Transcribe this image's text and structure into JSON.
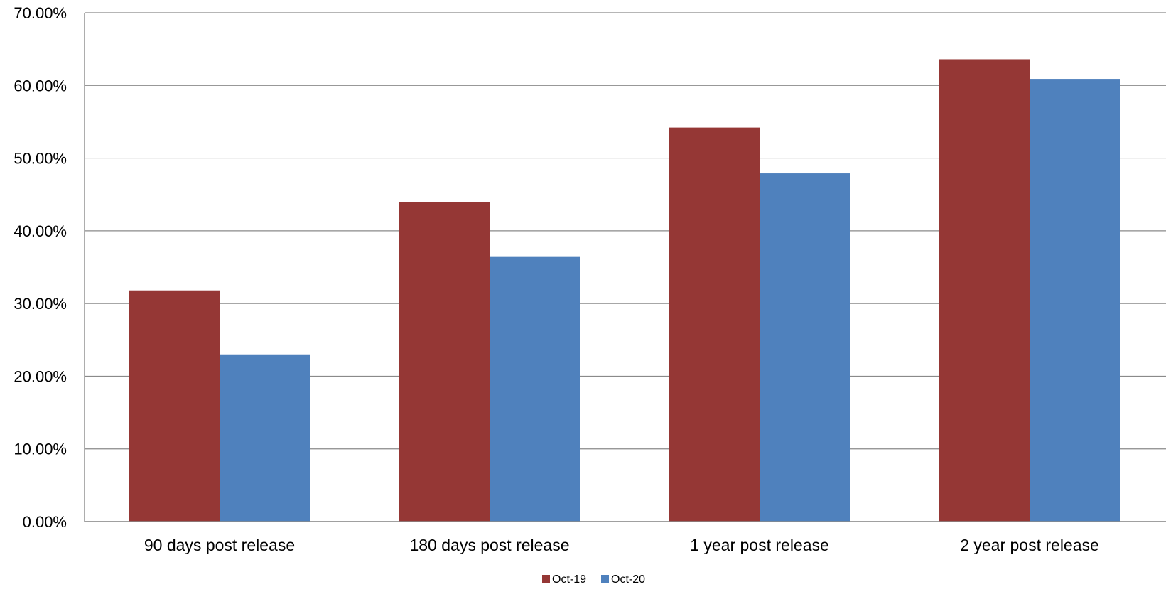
{
  "chart_data": {
    "type": "bar",
    "categories": [
      "90 days post release",
      "180 days post release",
      "1 year post release",
      "2 year post release"
    ],
    "series": [
      {
        "name": "Oct-19",
        "values": [
          31.8,
          43.9,
          54.2,
          63.6
        ],
        "color": "#953735"
      },
      {
        "name": "Oct-20",
        "values": [
          23.0,
          36.5,
          47.9,
          60.9
        ],
        "color": "#4F81BD"
      }
    ],
    "title": "",
    "xlabel": "",
    "ylabel": "",
    "ylim": [
      0,
      70
    ],
    "yticks": [
      "0.00%",
      "10.00%",
      "20.00%",
      "30.00%",
      "40.00%",
      "50.00%",
      "60.00%",
      "70.00%"
    ],
    "grid": true,
    "legend_position": "bottom"
  }
}
